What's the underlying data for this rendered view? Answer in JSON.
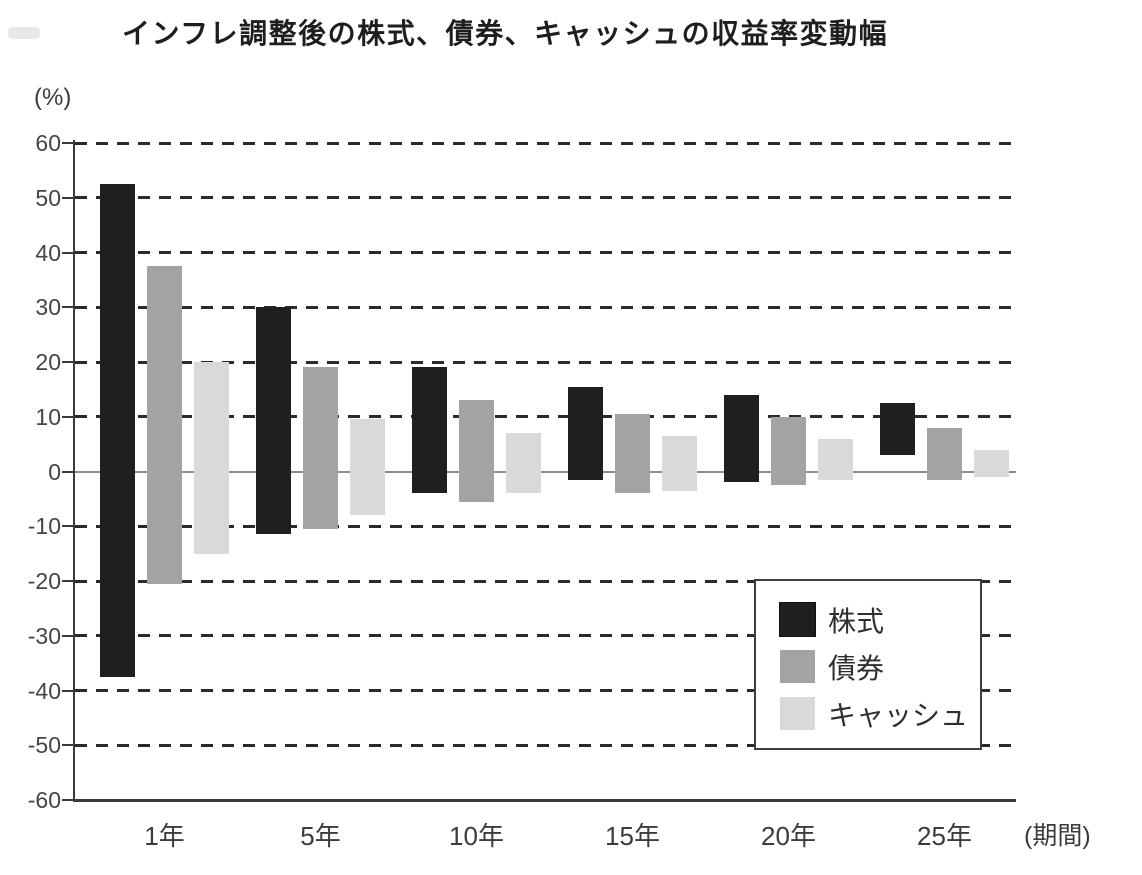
{
  "page": {
    "title": "インフレ調整後の株式、債券、キャッシュの収益率変動幅",
    "y_axis_unit_label": "(%)",
    "x_axis_unit_label": "(期間)"
  },
  "chart_data": {
    "type": "bar",
    "subtype": "floating-range-bars",
    "title": "インフレ調整後の株式、債券、キャッシュの収益率変動幅",
    "ylabel": "(%)",
    "xlabel": "(期間)",
    "categories": [
      "1年",
      "5年",
      "10年",
      "15年",
      "20年",
      "25年"
    ],
    "series": [
      {
        "key": "stocks",
        "name": "株式",
        "color": "#1f1f1f",
        "ranges_max_min_pct": [
          [
            52.5,
            -37.5
          ],
          [
            30,
            -11.5
          ],
          [
            19,
            -4
          ],
          [
            15.5,
            -1.5
          ],
          [
            14,
            -2
          ],
          [
            12.5,
            3
          ]
        ]
      },
      {
        "key": "bonds",
        "name": "債券",
        "color": "#a3a3a3",
        "ranges_max_min_pct": [
          [
            37.5,
            -20.5
          ],
          [
            19,
            -10.5
          ],
          [
            13,
            -5.5
          ],
          [
            10.5,
            -4
          ],
          [
            10,
            -2.5
          ],
          [
            8,
            -1.5
          ]
        ]
      },
      {
        "key": "cash",
        "name": "キャッシュ",
        "color": "#d9d9d9",
        "ranges_max_min_pct": [
          [
            20,
            -15
          ],
          [
            9.5,
            -8
          ],
          [
            7,
            -4
          ],
          [
            6.5,
            -3.5
          ],
          [
            6,
            -1.5
          ],
          [
            4,
            -1
          ]
        ]
      }
    ],
    "ylim": [
      -60,
      60
    ],
    "yticks": [
      60,
      50,
      40,
      30,
      20,
      10,
      0,
      -10,
      -20,
      -30,
      -40,
      -50,
      -60
    ],
    "grid": "horizontal dashed lines every 10, solid gray zero line, solid bottom axis",
    "legend_position": "inside lower right",
    "legend": [
      "株式",
      "債券",
      "キャッシュ"
    ]
  },
  "colors": {
    "background": "#ffffff",
    "stocks_bar": "#1f1f1f",
    "bonds_bar": "#a3a3a3",
    "cash_bar": "#d9d9d9",
    "gridline": "#2b2b2b",
    "zero_line": "#8d8d8d",
    "axis": "#3a3a3a",
    "text": "#3c3c3c"
  }
}
